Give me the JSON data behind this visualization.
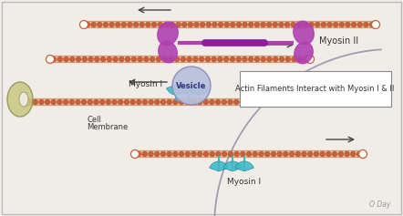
{
  "bg_color": "#f0ede8",
  "border_color": "#bbbbbb",
  "actin_bead_color": "#c8603a",
  "actin_bg_color": "#e8c8a0",
  "myosin2_color": "#b040b0",
  "myosin1_color": "#40b8c8",
  "vesicle_fill": "#b8c0dc",
  "vesicle_edge": "#8888bb",
  "cell_organ_fill": "#c8c880",
  "cell_organ_edge": "#909050",
  "cell_mem_color": "#9090a8",
  "arrow_color": "#444444",
  "text_color": "#333333",
  "label_myosin2": "Myosin II",
  "label_myosin1a": "Myosin I",
  "label_myosin1b": "Myosin I",
  "label_vesicle": "Vesicle",
  "label_cell_mem1": "Cell",
  "label_cell_mem2": "Membrane",
  "label_box": "Actin Filaments Interact with Myosin I & II",
  "label_oday": "O Day",
  "fig_w": 4.42,
  "fig_h": 2.37,
  "dpi": 100
}
